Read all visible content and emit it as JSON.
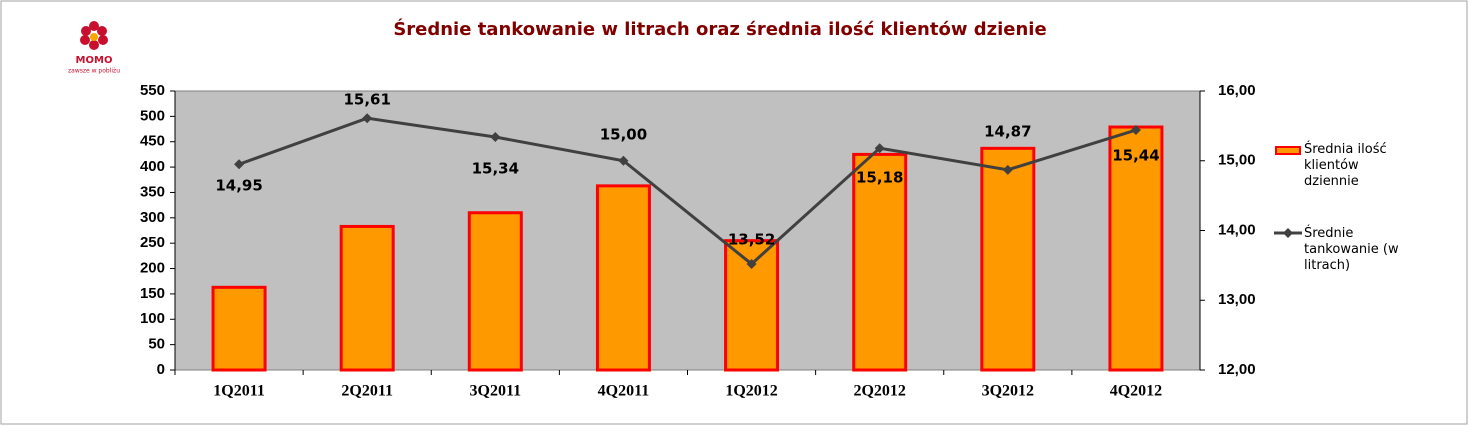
{
  "chart_data": {
    "type": "bar-line",
    "title": "Średnie tankowanie w litrach oraz średnia ilość klientów dzienie",
    "logo_text": "MOMO",
    "logo_tagline": "zawsze w pobliżu",
    "categories": [
      "1Q2011",
      "2Q2011",
      "3Q2011",
      "4Q2011",
      "1Q2012",
      "2Q2012",
      "3Q2012",
      "4Q2012"
    ],
    "series": [
      {
        "name": "Średnia ilość klientów dziennie",
        "type": "bar",
        "color": "#ff9900",
        "edge_color": "#ff0000",
        "values": [
          163,
          283,
          310,
          363,
          255,
          425,
          437,
          479
        ]
      },
      {
        "name": "Średnie tankowanie (w litrach)",
        "type": "line",
        "axis": "y2",
        "color": "#404040",
        "values": [
          14.95,
          15.61,
          15.34,
          15.0,
          13.52,
          15.18,
          14.87,
          15.44
        ],
        "value_labels": [
          "14,95",
          "15,61",
          "15,34",
          "15,00",
          "13,52",
          "15,18",
          "14,87",
          "15,44"
        ]
      }
    ],
    "ylim": [
      0,
      550
    ],
    "yticks": [
      0,
      50,
      100,
      150,
      200,
      250,
      300,
      350,
      400,
      450,
      500,
      550
    ],
    "y2lim": [
      12,
      16
    ],
    "y2ticks": [
      {
        "value": 12,
        "label": "12,00"
      },
      {
        "value": 13,
        "label": "13,00"
      },
      {
        "value": 14,
        "label": "14,00"
      },
      {
        "value": 15,
        "label": "15,00"
      },
      {
        "value": 16,
        "label": "16,00"
      }
    ],
    "plot_background": "#c0c0c0"
  }
}
